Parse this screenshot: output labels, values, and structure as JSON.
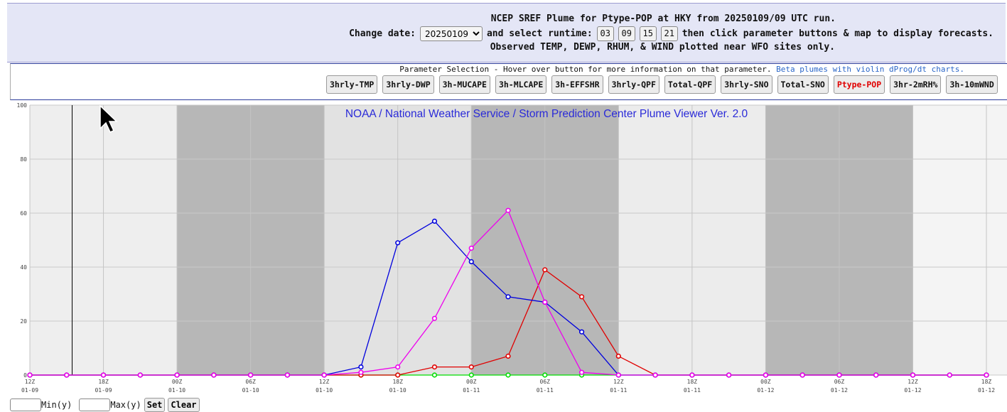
{
  "header": {
    "title": "NCEP SREF Plume for Ptype-POP at HKY from 20250109/09 UTC run.",
    "change_date_label": "Change date:",
    "selected_date": "20250109",
    "select_runtime_label": "and select runtime:",
    "runtimes": [
      "03",
      "09",
      "15",
      "21"
    ],
    "then_label": "then click parameter buttons & map to display forecasts.",
    "observed_note": "Observed TEMP, DEWP, RHUM, & WIND plotted near WFO sites only."
  },
  "params": {
    "instruction": "Parameter Selection - Hover over button for more information on that parameter.",
    "beta_link": "Beta plumes with violin dProg/dt charts.",
    "buttons": [
      "3hrly-TMP",
      "3hrly-DWP",
      "3h-MUCAPE",
      "3h-MLCAPE",
      "3h-EFFSHR",
      "3hrly-QPF",
      "Total-QPF",
      "3hrly-SNO",
      "Total-SNO",
      "Ptype-POP",
      "3hr-2mRH%",
      "3h-10mWND"
    ],
    "active": "Ptype-POP"
  },
  "chart_data": {
    "type": "line",
    "title": "NOAA / National Weather Service / Storm Prediction Center Plume Viewer Ver. 2.0",
    "xlabel": "",
    "ylabel": "",
    "ylim": [
      0,
      100
    ],
    "y_ticks": [
      "0",
      "20",
      "40",
      "60",
      "80",
      "100"
    ],
    "x_ticks": [
      {
        "hour": "12Z",
        "date": "01-09"
      },
      {
        "hour": "18Z",
        "date": "01-09"
      },
      {
        "hour": "00Z",
        "date": "01-10"
      },
      {
        "hour": "06Z",
        "date": "01-10"
      },
      {
        "hour": "12Z",
        "date": "01-10"
      },
      {
        "hour": "18Z",
        "date": "01-10"
      },
      {
        "hour": "00Z",
        "date": "01-11"
      },
      {
        "hour": "06Z",
        "date": "01-11"
      },
      {
        "hour": "12Z",
        "date": "01-11"
      },
      {
        "hour": "18Z",
        "date": "01-11"
      },
      {
        "hour": "00Z",
        "date": "01-12"
      },
      {
        "hour": "06Z",
        "date": "01-12"
      },
      {
        "hour": "12Z",
        "date": "01-12"
      },
      {
        "hour": "18Z",
        "date": "01-12"
      }
    ],
    "grid": true,
    "series": [
      {
        "color": "#00dd00",
        "values": [
          0,
          0,
          0,
          0,
          0,
          0,
          0,
          0,
          0,
          0,
          0,
          0,
          0,
          0,
          0,
          0,
          0,
          0,
          0,
          0,
          0,
          0,
          0,
          0,
          0,
          0,
          0
        ]
      },
      {
        "color": "#e00000",
        "values": [
          0,
          0,
          0,
          0,
          0,
          0,
          0,
          0,
          0,
          0,
          0,
          3,
          3,
          7,
          39,
          29,
          7,
          0,
          0,
          0,
          0,
          0,
          0,
          0,
          0,
          0,
          0
        ]
      },
      {
        "color": "#0000dd",
        "values": [
          0,
          0,
          0,
          0,
          0,
          0,
          0,
          0,
          0,
          3,
          49,
          57,
          42,
          29,
          27,
          16,
          0,
          0,
          0,
          0,
          0,
          0,
          0,
          0,
          0,
          0,
          0
        ]
      },
      {
        "color": "#ee00ee",
        "values": [
          0,
          0,
          0,
          0,
          0,
          0,
          0,
          0,
          0,
          1,
          3,
          21,
          47,
          61,
          27,
          1,
          0,
          0,
          0,
          0,
          0,
          0,
          0,
          0,
          0,
          0,
          0
        ]
      }
    ]
  },
  "bottom": {
    "min_label": "Min(y)",
    "max_label": "Max(y)",
    "set_label": "Set",
    "clear_label": "Clear"
  }
}
